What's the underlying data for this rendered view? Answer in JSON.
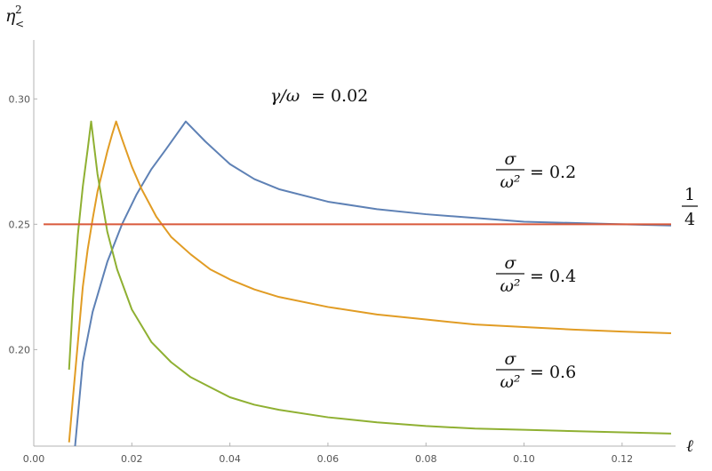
{
  "chart_data": {
    "type": "line",
    "title": "",
    "xlabel": "ℓ",
    "ylabel": {
      "base": "η",
      "sup": "2",
      "sub": "<"
    },
    "xlim": [
      0.0,
      0.13
    ],
    "ylim": [
      0.1615,
      0.3235
    ],
    "x_ticks": [
      "0.00",
      "0.02",
      "0.04",
      "0.06",
      "0.08",
      "0.10",
      "0.12"
    ],
    "y_ticks": [
      "0.20",
      "0.25",
      "0.30"
    ],
    "annotation": {
      "lhs": "γ/ω",
      "rhs": "= 0.02"
    },
    "reference_label": {
      "num": "1",
      "den": "4"
    },
    "series": [
      {
        "name": "σ/ω² = 0.2",
        "frac_num": "σ",
        "frac_den": "ω²",
        "value_text": "= 0.2",
        "color": "#5E81B5",
        "x": [
          0.0084,
          0.01,
          0.012,
          0.015,
          0.018,
          0.021,
          0.024,
          0.027,
          0.031,
          0.035,
          0.04,
          0.045,
          0.05,
          0.06,
          0.07,
          0.08,
          0.09,
          0.1,
          0.11,
          0.12,
          0.13
        ],
        "y": [
          0.161,
          0.195,
          0.215,
          0.235,
          0.25,
          0.262,
          0.272,
          0.28,
          0.291,
          0.283,
          0.274,
          0.268,
          0.264,
          0.259,
          0.256,
          0.254,
          0.2525,
          0.251,
          0.2505,
          0.25,
          0.2495
        ]
      },
      {
        "name": "σ/ω² = 0.4",
        "frac_num": "σ",
        "frac_den": "ω²",
        "value_text": "= 0.4",
        "color": "#E19C24",
        "x": [
          0.0072,
          0.008,
          0.009,
          0.01,
          0.011,
          0.012,
          0.013,
          0.014,
          0.015,
          0.016,
          0.0168,
          0.018,
          0.02,
          0.022,
          0.025,
          0.028,
          0.032,
          0.036,
          0.04,
          0.045,
          0.05,
          0.06,
          0.07,
          0.08,
          0.09,
          0.1,
          0.11,
          0.12,
          0.13
        ],
        "y": [
          0.163,
          0.181,
          0.203,
          0.225,
          0.24,
          0.252,
          0.263,
          0.271,
          0.279,
          0.286,
          0.291,
          0.284,
          0.273,
          0.264,
          0.253,
          0.245,
          0.238,
          0.232,
          0.228,
          0.224,
          0.221,
          0.217,
          0.214,
          0.212,
          0.21,
          0.209,
          0.208,
          0.2072,
          0.2065
        ]
      },
      {
        "name": "σ/ω² = 0.6",
        "frac_num": "σ",
        "frac_den": "ω²",
        "value_text": "= 0.6",
        "color": "#8FB032",
        "x": [
          0.0072,
          0.008,
          0.009,
          0.01,
          0.011,
          0.0117,
          0.013,
          0.015,
          0.017,
          0.02,
          0.024,
          0.028,
          0.032,
          0.036,
          0.04,
          0.045,
          0.05,
          0.06,
          0.07,
          0.08,
          0.09,
          0.1,
          0.11,
          0.12,
          0.13
        ],
        "y": [
          0.192,
          0.22,
          0.246,
          0.265,
          0.28,
          0.291,
          0.27,
          0.247,
          0.232,
          0.216,
          0.203,
          0.195,
          0.189,
          0.185,
          0.181,
          0.178,
          0.176,
          0.173,
          0.171,
          0.1695,
          0.1685,
          0.168,
          0.1675,
          0.167,
          0.1665
        ]
      },
      {
        "name": "1/4",
        "color": "#D9593A",
        "x": [
          0.002,
          0.13
        ],
        "y": [
          0.25,
          0.25
        ]
      }
    ]
  }
}
